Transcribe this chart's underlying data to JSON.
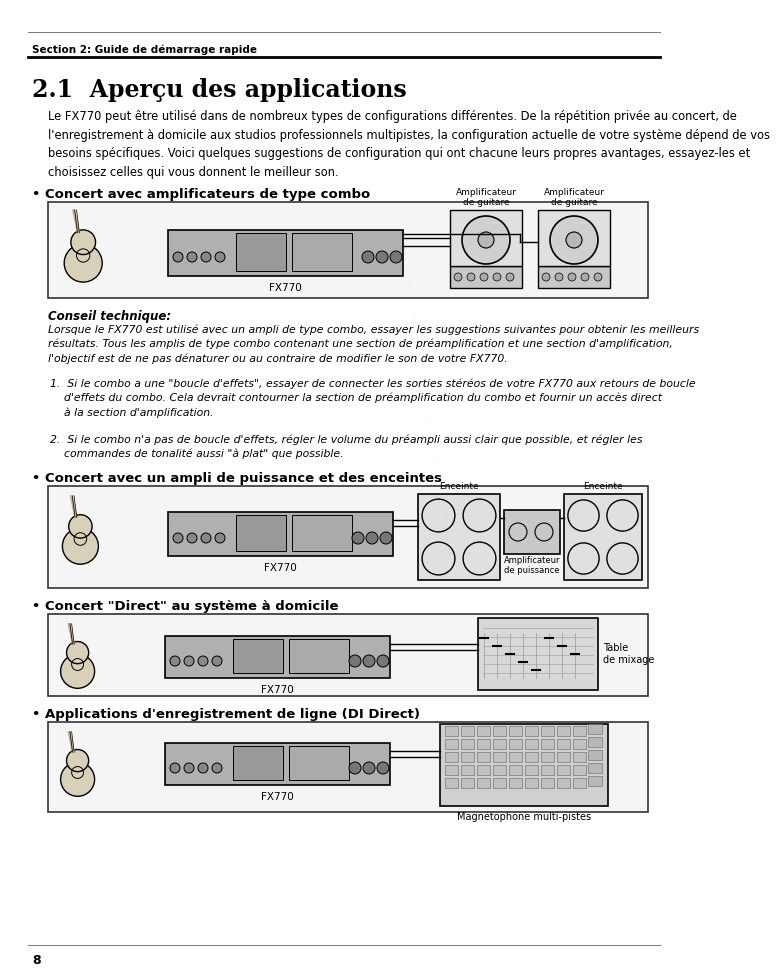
{
  "bg": "#ffffff",
  "header_text": "Section 2: Guide de démarrage rapide",
  "title": "2.1  Aperçu des applications",
  "intro": "Le FX770 peut être utilisé dans de nombreux types de configurations différentes. De la répétition privée au concert, de\nl'enregistrement à domicile aux studios professionnels multipistes, la configuration actuelle de votre système dépend de vos\nbesoins spécifiques. Voici quelques suggestions de configuration qui ont chacune leurs propres avantages, essayez-les et\nchoisissez celles qui vous donnent le meilleur son.",
  "s1_title": "• Concert avec amplificateurs de type combo",
  "conseil_title": "Conseil technique:",
  "conseil_body": "Lorsque le FX770 est utilisé avec un ampli de type combo, essayer les suggestions suivantes pour obtenir les meilleurs\nrésultats. Tous les amplis de type combo contenant une section de préamplification et une section d'amplification,\nl'objectif est de ne pas dénaturer ou au contraire de modifier le son de votre FX770.",
  "item1": "1.  Si le combo a une \"boucle d'effets\", essayer de connecter les sorties stéréos de votre FX770 aux retours de boucle\n    d'effets du combo. Cela devrait contourner la section de préamplification du combo et fournir un accès direct\n    à la section d'amplification.",
  "item2": "2.  Si le combo n'a pas de boucle d'effets, régler le volume du préampli aussi clair que possible, et régler les\n    commandes de tonalité aussi \"à plat\" que possible.",
  "s2_title": "• Concert avec un ampli de puissance et des enceintes",
  "s3_title": "• Concert \"Direct\" au système à domicile",
  "s4_title": "• Applications d'enregistrement de ligne (DI Direct)",
  "lbl_fx770": "FX770",
  "lbl_amp_guitar1": "Amplificateur\nde guitare",
  "lbl_amp_guitar2": "Amplificateur\nde guitare",
  "lbl_enceinte1": "Enceinte",
  "lbl_enceinte2": "Enceinte",
  "lbl_amp_power": "Amplificateur\nde puissance",
  "lbl_table": "Table\nde mixage",
  "lbl_magneto": "Magnétophone multi-pistes",
  "page_num": "8"
}
